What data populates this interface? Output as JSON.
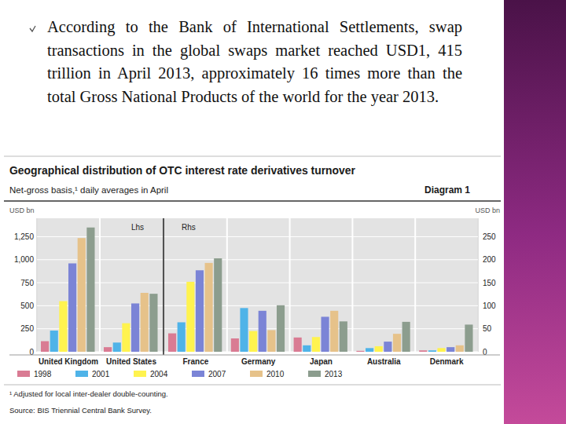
{
  "slide": {
    "text": "According to the Bank of International Settlements, swap transactions in the global swaps market reached USD1, 415 trillion in April 2013, approximately 16 times more than the total Gross National Products of the world for the year 2013."
  },
  "chart_data": [
    {
      "type": "bar",
      "title": "Geographical distribution of OTC interest rate derivatives turnover",
      "subtitle": "Net-gross basis,¹ daily averages in April",
      "diagram_label": "Diagram 1",
      "y_label": "USD bn",
      "annotation": "Lhs",
      "notes": "¹ Adjusted for local inter-dealer double-counting.",
      "source": "Source: BIS Triennial Central Bank Survey.",
      "categories": [
        "United Kingdom",
        "United States"
      ],
      "series": [
        {
          "name": "1998",
          "color": "#d97b93",
          "values": [
            115,
            50
          ]
        },
        {
          "name": "2001",
          "color": "#4fb3e8",
          "values": [
            230,
            100
          ]
        },
        {
          "name": "2004",
          "color": "#fff34f",
          "values": [
            550,
            310
          ]
        },
        {
          "name": "2007",
          "color": "#7b84d6",
          "values": [
            960,
            525
          ]
        },
        {
          "name": "2010",
          "color": "#e6c28a",
          "values": [
            1235,
            640
          ]
        },
        {
          "name": "2013",
          "color": "#8c9d8e",
          "values": [
            1350,
            630
          ]
        }
      ],
      "ylim": [
        0,
        1450
      ],
      "yticks": [
        0,
        250,
        500,
        750,
        {
          "value": 1000,
          "label": "1,000"
        },
        {
          "value": 1250,
          "label": "1,250"
        }
      ],
      "grid": true,
      "legend": "bottom"
    },
    {
      "type": "bar",
      "y_label": "USD bn",
      "annotation": "Rhs",
      "categories": [
        "France",
        "Germany",
        "Japan",
        "Australia",
        "Denmark"
      ],
      "series": [
        {
          "color": "#d97b93",
          "values": [
            40,
            29,
            31,
            2,
            3
          ]
        },
        {
          "color": "#4fb3e8",
          "values": [
            64,
            95,
            14,
            8,
            3
          ]
        },
        {
          "color": "#fff34f",
          "values": [
            152,
            45,
            32,
            12,
            8
          ]
        },
        {
          "color": "#7b84d6",
          "values": [
            177,
            89,
            76,
            22,
            10
          ]
        },
        {
          "color": "#e6c28a",
          "values": [
            193,
            47,
            89,
            39,
            14
          ]
        },
        {
          "color": "#8c9d8e",
          "values": [
            203,
            101,
            66,
            65,
            59
          ]
        }
      ],
      "ylim": [
        0,
        290
      ],
      "yticks": [
        0,
        50,
        100,
        150,
        200,
        250
      ],
      "grid": true
    }
  ]
}
